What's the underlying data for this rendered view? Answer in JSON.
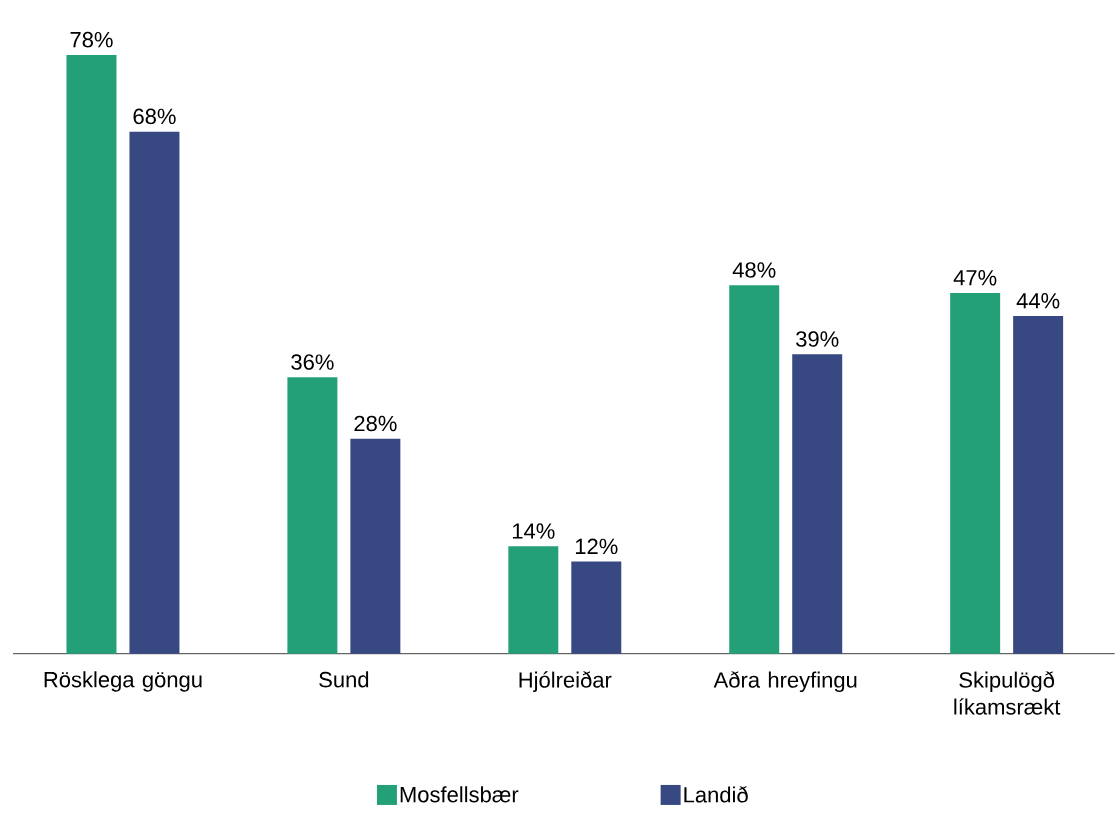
{
  "chart_data": {
    "type": "bar",
    "categories": [
      "Rösklega göngu",
      "Sund",
      "Hjólreiðar",
      "Aðra hreyfingu",
      "Skipulögð líkamsrækt"
    ],
    "series": [
      {
        "name": "Mosfellsbær",
        "color": "#23a078",
        "values": [
          78,
          36,
          14,
          48,
          47
        ],
        "value_labels": [
          "78%",
          "36%",
          "14%",
          "48%",
          "47%"
        ]
      },
      {
        "name": "Landið",
        "color": "#374882",
        "values": [
          68,
          28,
          12,
          39,
          44
        ],
        "value_labels": [
          "68%",
          "28%",
          "12%",
          "39%",
          "44%"
        ]
      }
    ],
    "legend": "bottom"
  }
}
